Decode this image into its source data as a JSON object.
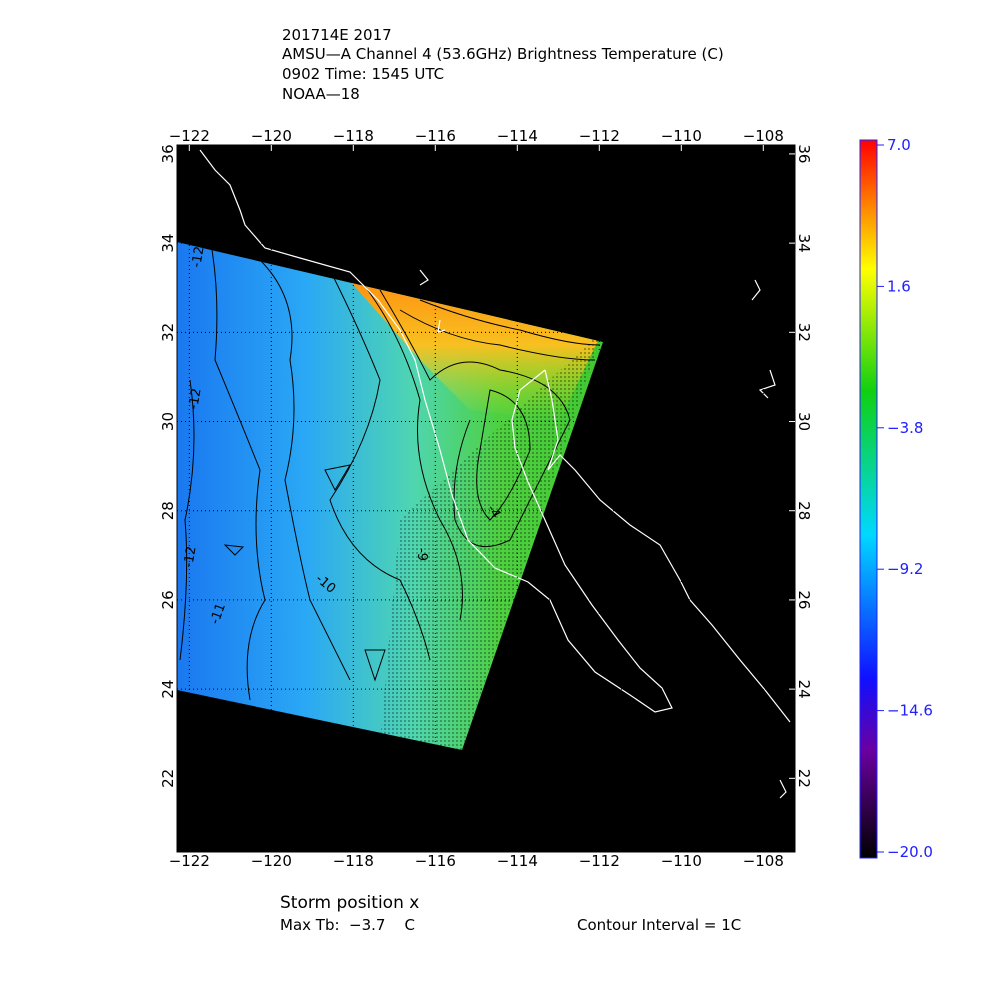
{
  "header": {
    "lines": [
      "201714E 2017",
      "AMSU—A Channel 4 (53.6GHz) Brightness Temperature (C)",
      "0902 Time: 1545 UTC",
      "NOAA—18"
    ]
  },
  "map": {
    "lon_ticks": [
      {
        "value": -122,
        "label": "−122"
      },
      {
        "value": -120,
        "label": "−120"
      },
      {
        "value": -118,
        "label": "−118"
      },
      {
        "value": -116,
        "label": "−116"
      },
      {
        "value": -114,
        "label": "−114"
      },
      {
        "value": -112,
        "label": "−112"
      },
      {
        "value": -110,
        "label": "−110"
      },
      {
        "value": -108,
        "label": "−108"
      }
    ],
    "lat_ticks": [
      36,
      34,
      32,
      30,
      28,
      26,
      24,
      22
    ],
    "contour_labels": [
      "-12",
      "-12",
      "-12",
      "-11",
      "-10",
      "-9",
      "-4"
    ]
  },
  "colorbar": {
    "range": [
      -20,
      7
    ],
    "ticks": [
      {
        "value": 7,
        "label": "7.0"
      },
      1.6,
      {
        "value": -3.8,
        "label": "−3.8"
      },
      {
        "value": -9.2,
        "label": "−9.2"
      },
      {
        "value": -14.6,
        "label": "−14.6"
      },
      {
        "value": -20,
        "label": "−20.0"
      }
    ]
  },
  "footer": {
    "storm_position": "Storm position x",
    "max_tb": "Max Tb:  −3.7    C",
    "contour_interval": "Contour Interval = 1C"
  }
}
